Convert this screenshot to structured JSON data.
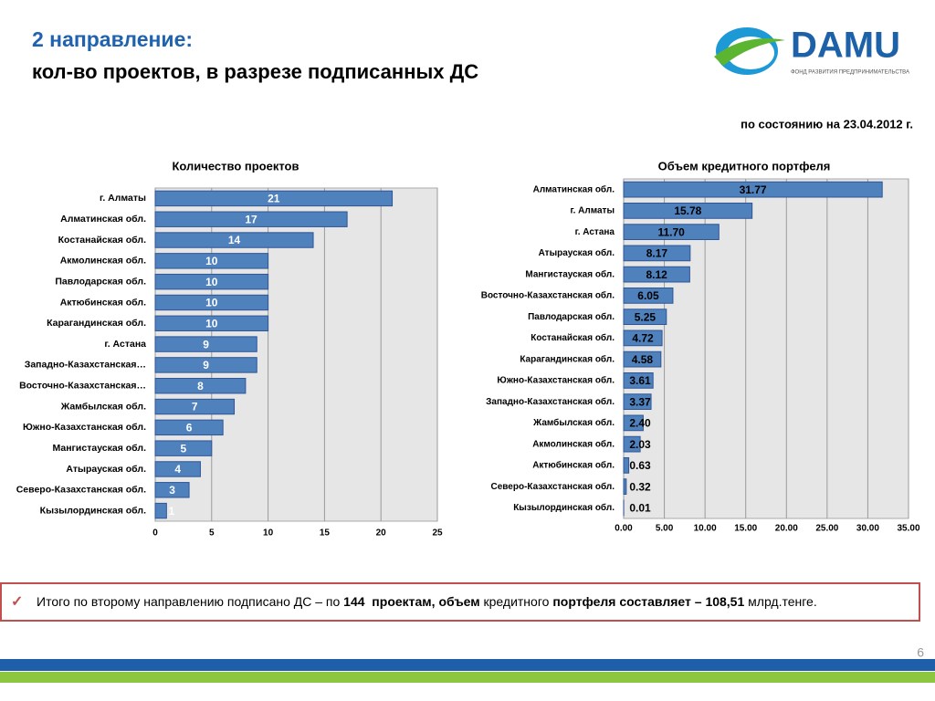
{
  "header": {
    "title_line1": "2  направление:",
    "title_line2": "кол-во проектов,  в разрезе подписанных ДС",
    "logo": "DAMU",
    "logo_subtitle": "ФОНД РАЗВИТИЯ ПРЕДПРИНИМАТЕЛЬСТВА",
    "date_note": "по состоянию на 23.04.2012 г."
  },
  "chart_data": [
    {
      "type": "hbar",
      "title": "Количество проектов",
      "color": "#4f81bd",
      "label_color": "#ffffff",
      "grid": true,
      "categories": [
        "г. Алматы",
        "Алматинская обл.",
        "Костанайская обл.",
        "Акмолинская обл.",
        "Павлодарская обл.",
        "Актюбинская обл.",
        "Карагандинская обл.",
        "г. Астана",
        "Западно-Казахстанская…",
        "Восточно-Казахстанская…",
        "Жамбылская обл.",
        "Южно-Казахстанская обл.",
        "Мангистауская обл.",
        "Атырауская обл.",
        "Северо-Казахстанская обл.",
        "Кызылординская обл."
      ],
      "values": [
        21,
        17,
        14,
        10,
        10,
        10,
        10,
        9,
        9,
        8,
        7,
        6,
        5,
        4,
        3,
        1
      ],
      "xlim": [
        0,
        25
      ],
      "xticks": [
        0,
        5,
        10,
        15,
        20,
        25
      ]
    },
    {
      "type": "hbar",
      "title": "Объем кредитного портфеля",
      "color": "#4f81bd",
      "label_color": "#000000",
      "grid": true,
      "categories": [
        "Алматинская обл.",
        "г. Алматы",
        "г. Астана",
        "Атырауская обл.",
        "Мангистауская обл.",
        "Восточно-Казахстанская обл.",
        "Павлодарская обл.",
        "Костанайская обл.",
        "Карагандинская обл.",
        "Южно-Казахстанская обл.",
        "Западно-Казахстанская обл.",
        "Жамбылская обл.",
        "Акмолинская обл.",
        "Актюбинская обл.",
        "Северо-Казахстанская обл.",
        "Кызылординская обл."
      ],
      "values": [
        31.77,
        15.78,
        11.7,
        8.17,
        8.12,
        6.05,
        5.25,
        4.72,
        4.58,
        3.61,
        3.37,
        2.4,
        2.03,
        0.63,
        0.32,
        0.01
      ],
      "value_labels": [
        "31.77",
        "15.78",
        "11.70",
        "8.17",
        "8.12",
        "6.05",
        "5.25",
        "4.72",
        "4.58",
        "3.61",
        "3.37",
        "2.40",
        "2.03",
        "0.63",
        "0.32",
        "0.01"
      ],
      "xlim": [
        0,
        35
      ],
      "xticks": [
        {
          "value": 0,
          "label": "0.00"
        },
        {
          "value": 5,
          "label": "5.00"
        },
        {
          "value": 10,
          "label": "10.00"
        },
        {
          "value": 15,
          "label": "15.00"
        },
        {
          "value": 20,
          "label": "20.00"
        },
        {
          "value": 25,
          "label": "25.00"
        },
        {
          "value": 30,
          "label": "30.00"
        },
        {
          "value": 35,
          "label": "35.00"
        }
      ]
    }
  ],
  "footer": {
    "segments": [
      {
        "text": "Итого по второму направлению подписано ДС – по ",
        "bold": false
      },
      {
        "text": "144  проектам, объем",
        "bold": true
      },
      {
        "text": " кредитного ",
        "bold": false
      },
      {
        "text": "портфеля составляет – 108,51",
        "bold": true
      },
      {
        "text": " млрд.тенге.",
        "bold": false
      }
    ]
  },
  "page_number": "6"
}
